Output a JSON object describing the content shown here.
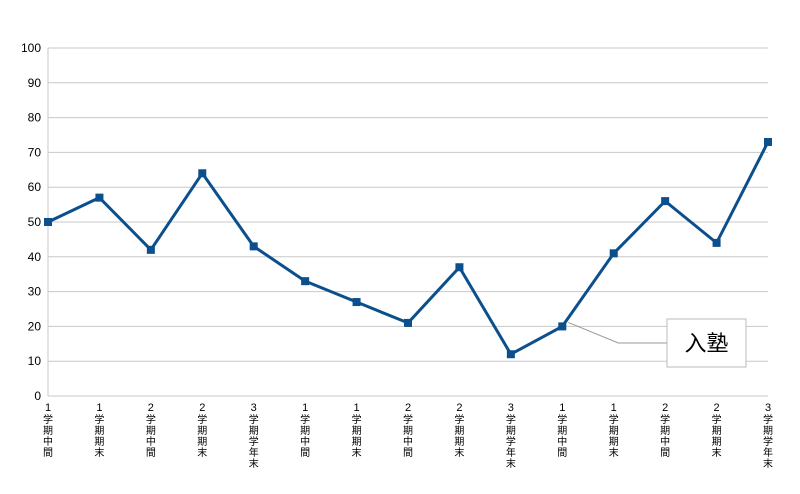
{
  "chart_data": {
    "type": "line",
    "title": "",
    "xlabel": "",
    "ylabel": "",
    "ylim": [
      0,
      100
    ],
    "yticks": [
      0,
      10,
      20,
      30,
      40,
      50,
      60,
      70,
      80,
      90,
      100
    ],
    "grid": true,
    "categories": [
      {
        "num": "1",
        "label": "学期中間"
      },
      {
        "num": "1",
        "label": "学期期末"
      },
      {
        "num": "2",
        "label": "学期中間"
      },
      {
        "num": "2",
        "label": "学期期末"
      },
      {
        "num": "3",
        "label": "学期学年末"
      },
      {
        "num": "1",
        "label": "学期中間"
      },
      {
        "num": "1",
        "label": "学期期末"
      },
      {
        "num": "2",
        "label": "学期中間"
      },
      {
        "num": "2",
        "label": "学期期末"
      },
      {
        "num": "3",
        "label": "学期学年末"
      },
      {
        "num": "1",
        "label": "学期中間"
      },
      {
        "num": "1",
        "label": "学期期末"
      },
      {
        "num": "2",
        "label": "学期中間"
      },
      {
        "num": "2",
        "label": "学期期末"
      },
      {
        "num": "3",
        "label": "学期学年末"
      }
    ],
    "series": [
      {
        "values": [
          50,
          57,
          42,
          64,
          43,
          33,
          27,
          21,
          37,
          12,
          20,
          41,
          56,
          44,
          73
        ],
        "color": "#0b4f8c"
      }
    ],
    "annotation": {
      "text": "入塾",
      "point_index": 10
    }
  }
}
